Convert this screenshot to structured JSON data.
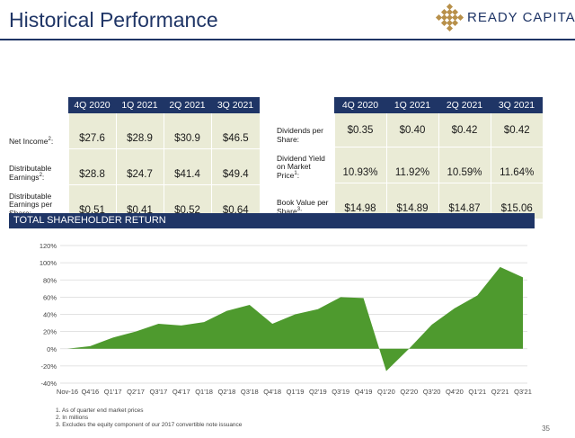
{
  "header": {
    "title": "Historical Performance",
    "logo_text": "READY CAPITAL"
  },
  "left_table": {
    "columns": [
      "4Q 2020",
      "1Q 2021",
      "2Q 2021",
      "3Q 2021"
    ],
    "rows": [
      {
        "label": "Net Income",
        "sup": "2",
        "suffix": ":",
        "values": [
          "$27.6",
          "$28.9",
          "$30.9",
          "$46.5"
        ]
      },
      {
        "label": "Distributable Earnings",
        "sup": "2",
        "suffix": ":",
        "values": [
          "$28.8",
          "$24.7",
          "$41.4",
          "$49.4"
        ]
      },
      {
        "label": "Distributable Earnings per Share:",
        "sup": "",
        "suffix": "",
        "values": [
          "$0.51",
          "$0.41",
          "$0.52",
          "$0.64"
        ]
      }
    ]
  },
  "right_table": {
    "columns": [
      "4Q 2020",
      "1Q 2021",
      "2Q 2021",
      "3Q 2021"
    ],
    "rows": [
      {
        "label": "Dividends per Share:",
        "sup": "",
        "suffix": "",
        "values": [
          "$0.35",
          "$0.40",
          "$0.42",
          "$0.42"
        ]
      },
      {
        "label": "Dividend Yield on Market Price",
        "sup": "1",
        "suffix": ":",
        "values": [
          "10.93%",
          "11.92%",
          "10.59%",
          "11.64%"
        ]
      },
      {
        "label": "Book Value per Share",
        "sup": "3",
        "suffix": ":",
        "values": [
          "$14.98",
          "$14.89",
          "$14.87",
          "$15.06"
        ]
      }
    ]
  },
  "tsr": {
    "title": "TOTAL SHAREHOLDER RETURN"
  },
  "chart_data": {
    "type": "area",
    "title": "TOTAL SHAREHOLDER RETURN",
    "xlabel": "",
    "ylabel": "",
    "x": [
      "Nov-16",
      "Q4'16",
      "Q1'17",
      "Q2'17",
      "Q3'17",
      "Q4'17",
      "Q1'18",
      "Q2'18",
      "Q3'18",
      "Q4'18",
      "Q1'19",
      "Q2'19",
      "Q3'19",
      "Q4'19",
      "Q1'20",
      "Q2'20",
      "Q3'20",
      "Q4'20",
      "Q1'21",
      "Q2'21",
      "Q3'21"
    ],
    "values": [
      0,
      3,
      13,
      20,
      29,
      27,
      31,
      44,
      51,
      29,
      40,
      46,
      60,
      59,
      -26,
      0,
      28,
      47,
      62,
      95,
      83
    ],
    "ylim": [
      -40,
      120
    ],
    "yticks": [
      "-40%",
      "-20%",
      "0%",
      "20%",
      "40%",
      "60%",
      "80%",
      "100%",
      "120%"
    ],
    "ytick_values": [
      -40,
      -20,
      0,
      20,
      40,
      60,
      80,
      100,
      120
    ],
    "grid": true,
    "color": "#4e9a2e"
  },
  "footnotes": [
    "1. As of quarter end market prices",
    "2. In millions",
    "3. Excludes the equity component of our 2017 convertible note issuance"
  ],
  "page_number": "35",
  "colors": {
    "navy": "#1f3566",
    "cell": "#eaebd6",
    "green": "#4e9a2e",
    "gold": "#b8904a"
  }
}
